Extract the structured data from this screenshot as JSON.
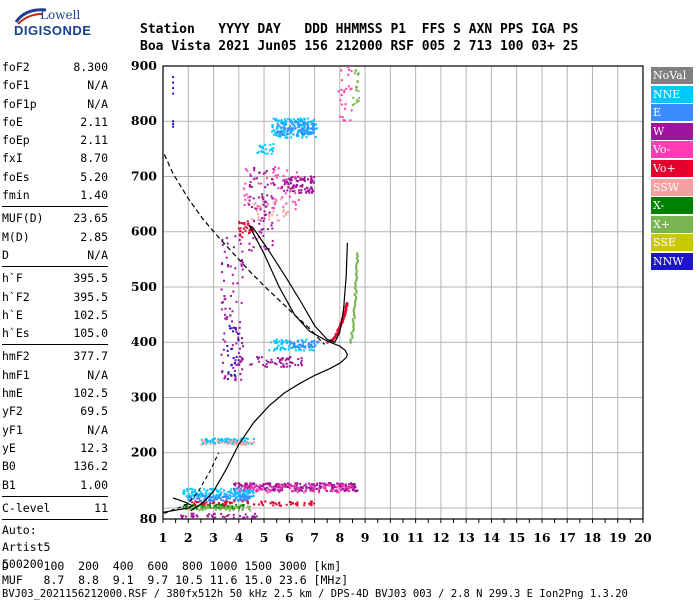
{
  "logo": {
    "line1": "Lowell",
    "line2": "DIGISONDE"
  },
  "header": {
    "line1": "Station   YYYY DAY   DDD HHMMSS P1  FFS S AXN PPS IGA PS",
    "line2": "Boa Vista 2021 Jun05 156 212000 RSF 005 2 713 100 03+ 25"
  },
  "params": {
    "group1": [
      {
        "label": "foF2",
        "value": "8.300"
      },
      {
        "label": "foF1",
        "value": "N/A"
      },
      {
        "label": "foF1p",
        "value": "N/A"
      },
      {
        "label": "foE",
        "value": "2.11"
      },
      {
        "label": "foEp",
        "value": "2.11"
      },
      {
        "label": "fxI",
        "value": "8.70"
      },
      {
        "label": "foEs",
        "value": "5.20"
      },
      {
        "label": "fmin",
        "value": "1.40"
      }
    ],
    "group2": [
      {
        "label": "MUF(D)",
        "value": "23.65"
      },
      {
        "label": "M(D)",
        "value": "2.85"
      },
      {
        "label": "D",
        "value": "N/A"
      }
    ],
    "group3": [
      {
        "label": "h`F",
        "value": "395.5"
      },
      {
        "label": "h`F2",
        "value": "395.5"
      },
      {
        "label": "h`E",
        "value": "102.5"
      },
      {
        "label": "h`Es",
        "value": "105.0"
      }
    ],
    "group4": [
      {
        "label": "hmF2",
        "value": "377.7"
      },
      {
        "label": "hmF1",
        "value": "N/A"
      },
      {
        "label": "hmE",
        "value": "102.5"
      },
      {
        "label": "yF2",
        "value": "69.5"
      },
      {
        "label": "yF1",
        "value": "N/A"
      },
      {
        "label": "yE",
        "value": "12.3"
      },
      {
        "label": "B0",
        "value": "136.2"
      },
      {
        "label": "B1",
        "value": "1.00"
      }
    ],
    "group5": [
      {
        "label": "C-level",
        "value": "11"
      }
    ],
    "auto": [
      "Auto:",
      "Artist5",
      "500200"
    ]
  },
  "legend": [
    {
      "label": "NoVal",
      "color": "#808080"
    },
    {
      "label": "NNE",
      "color": "#00c8ff"
    },
    {
      "label": "E",
      "color": "#3c8cff"
    },
    {
      "label": "W",
      "color": "#a0149b"
    },
    {
      "label": "Vo-",
      "color": "#ff3cb4"
    },
    {
      "label": "Vo+",
      "color": "#e6002d"
    },
    {
      "label": "SSW",
      "color": "#f5a0a0"
    },
    {
      "label": "X-",
      "color": "#008200"
    },
    {
      "label": "X+",
      "color": "#78b450"
    },
    {
      "label": "SSE",
      "color": "#c8c800"
    },
    {
      "label": "NNW",
      "color": "#1e14c8"
    }
  ],
  "footer": {
    "line1": "D     100  200  400  600  800 1000 1500 3000 [km]",
    "line2": "MUF   8.7  8.8  9.1  9.7 10.5 11.6 15.0 23.6 [MHz]",
    "line3": "BVJ03_2021156212000.RSF / 380fx512h 50 kHz 2.5 km / DPS-4D BVJ03 003 / 2.8 N 299.3 E Ion2Png 1.3.20"
  },
  "chart_data": {
    "type": "scatter",
    "title": "",
    "xlabel": "",
    "ylabel": "",
    "xlim": [
      1,
      20
    ],
    "ylim": [
      80,
      900
    ],
    "xticks": [
      1,
      2,
      3,
      4,
      5,
      6,
      7,
      8,
      9,
      10,
      11,
      12,
      13,
      14,
      15,
      16,
      17,
      18,
      19,
      20
    ],
    "yticks": [
      80,
      100,
      200,
      300,
      400,
      500,
      600,
      700,
      800,
      900
    ],
    "yticklabels": [
      "80",
      "",
      "200",
      "300",
      "400",
      "500",
      "600",
      "700",
      "800",
      "900"
    ],
    "grid": true,
    "profile_solid": [
      [
        2.1,
        95
      ],
      [
        2.6,
        110
      ],
      [
        3.0,
        130
      ],
      [
        3.5,
        170
      ],
      [
        4.0,
        215
      ],
      [
        4.6,
        255
      ],
      [
        5.2,
        285
      ],
      [
        5.8,
        308
      ],
      [
        6.4,
        325
      ],
      [
        7.0,
        340
      ],
      [
        7.6,
        352
      ],
      [
        8.0,
        362
      ],
      [
        8.25,
        372
      ],
      [
        8.3,
        378
      ],
      [
        8.2,
        386
      ],
      [
        8.0,
        393
      ],
      [
        7.5,
        402
      ],
      [
        6.8,
        420
      ],
      [
        6.2,
        450
      ],
      [
        5.6,
        500
      ],
      [
        5.0,
        560
      ],
      [
        4.6,
        595
      ],
      [
        4.4,
        612
      ],
      [
        4.6,
        605
      ],
      [
        5.2,
        565
      ],
      [
        5.9,
        515
      ],
      [
        6.5,
        470
      ],
      [
        7.0,
        430
      ],
      [
        7.5,
        405
      ],
      [
        7.8,
        400
      ],
      [
        8.0,
        418
      ],
      [
        8.15,
        460
      ],
      [
        8.25,
        520
      ],
      [
        8.3,
        580
      ]
    ],
    "profile_dashed": [
      [
        1.05,
        740
      ],
      [
        1.4,
        705
      ],
      [
        2.0,
        660
      ],
      [
        2.6,
        622
      ],
      [
        3.2,
        590
      ],
      [
        3.8,
        560
      ],
      [
        4.4,
        530
      ],
      [
        5.0,
        502
      ],
      [
        5.6,
        476
      ],
      [
        6.2,
        450
      ],
      [
        6.8,
        425
      ],
      [
        7.2,
        405
      ],
      [
        7.4,
        396
      ]
    ],
    "profile_low_dashed": [
      [
        1.05,
        90
      ],
      [
        1.3,
        95
      ],
      [
        1.6,
        100
      ],
      [
        2.0,
        108
      ],
      [
        2.4,
        130
      ],
      [
        2.9,
        170
      ],
      [
        3.2,
        200
      ]
    ],
    "profile_low_solid": [
      [
        1.0,
        92
      ],
      [
        1.5,
        96
      ],
      [
        2.0,
        100
      ],
      [
        2.15,
        104
      ],
      [
        1.9,
        110
      ],
      [
        1.6,
        115
      ],
      [
        1.4,
        118
      ]
    ],
    "traces": [
      {
        "mode": "NNW",
        "points": [
          [
            1.4,
            880
          ],
          [
            1.4,
            870
          ],
          [
            1.4,
            860
          ],
          [
            1.4,
            850
          ],
          [
            1.4,
            800
          ],
          [
            1.4,
            795
          ],
          [
            1.4,
            790
          ]
        ],
        "kind": "dots"
      },
      {
        "mode": "NNE",
        "x": [
          5.3,
          7.1
        ],
        "y": [
          770,
          805
        ],
        "kind": "cloud",
        "n": 160
      },
      {
        "mode": "E",
        "x": [
          5.5,
          7.0
        ],
        "y": [
          775,
          800
        ],
        "kind": "cloud",
        "n": 80
      },
      {
        "mode": "W",
        "x": [
          5.7,
          7.0
        ],
        "y": [
          670,
          700
        ],
        "kind": "cloud",
        "n": 90
      },
      {
        "mode": "Vo-",
        "x": [
          4.2,
          6.5
        ],
        "y": [
          640,
          720
        ],
        "kind": "cloud",
        "n": 60
      },
      {
        "mode": "SSW",
        "x": [
          4.5,
          6.0
        ],
        "y": [
          620,
          660
        ],
        "kind": "cloud",
        "n": 40
      },
      {
        "mode": "W",
        "x": [
          4.4,
          5.4
        ],
        "y": [
          560,
          720
        ],
        "kind": "cloud",
        "n": 70
      },
      {
        "mode": "Vo+",
        "x": [
          4.0,
          4.6
        ],
        "y": [
          590,
          620
        ],
        "kind": "cloud",
        "n": 30
      },
      {
        "mode": "NNE",
        "x": [
          4.6,
          5.4
        ],
        "y": [
          740,
          760
        ],
        "kind": "cloud",
        "n": 25
      },
      {
        "mode": "W",
        "x": [
          3.3,
          4.2
        ],
        "y": [
          330,
          600
        ],
        "kind": "cloud",
        "n": 90
      },
      {
        "mode": "NNW",
        "x": [
          3.5,
          4.0
        ],
        "y": [
          330,
          430
        ],
        "kind": "cloud",
        "n": 25
      },
      {
        "mode": "W",
        "x": [
          3.8,
          6.5
        ],
        "y": [
          355,
          375
        ],
        "kind": "cloud",
        "n": 60
      },
      {
        "mode": "NNE",
        "x": [
          5.2,
          7.0
        ],
        "y": [
          385,
          405
        ],
        "kind": "cloud",
        "n": 70
      },
      {
        "mode": "E",
        "x": [
          6.0,
          7.2
        ],
        "y": [
          390,
          402
        ],
        "kind": "cloud",
        "n": 40
      },
      {
        "mode": "Vo+",
        "x": [
          7.5,
          8.3
        ],
        "y": [
          400,
          470
        ],
        "kind": "curve",
        "n": 45
      },
      {
        "mode": "X+",
        "x": [
          8.4,
          8.7
        ],
        "y": [
          400,
          560
        ],
        "kind": "curve",
        "n": 40
      },
      {
        "mode": "Vo-",
        "x": [
          7.9,
          8.5
        ],
        "y": [
          800,
          900
        ],
        "kind": "cloud",
        "n": 25
      },
      {
        "mode": "X+",
        "x": [
          8.5,
          8.8
        ],
        "y": [
          820,
          900
        ],
        "kind": "cloud",
        "n": 20
      },
      {
        "mode": "NNE",
        "x": [
          2.5,
          4.6
        ],
        "y": [
          216,
          226
        ],
        "kind": "cloud",
        "n": 90
      },
      {
        "mode": "SSW",
        "x": [
          2.5,
          4.6
        ],
        "y": [
          214,
          222
        ],
        "kind": "cloud",
        "n": 40
      },
      {
        "mode": "W",
        "x": [
          3.8,
          8.7
        ],
        "y": [
          130,
          145
        ],
        "kind": "cloud",
        "n": 260
      },
      {
        "mode": "Vo-",
        "x": [
          4.0,
          8.5
        ],
        "y": [
          128,
          142
        ],
        "kind": "cloud",
        "n": 80
      },
      {
        "mode": "NNE",
        "x": [
          1.8,
          4.6
        ],
        "y": [
          118,
          135
        ],
        "kind": "cloud",
        "n": 160
      },
      {
        "mode": "E",
        "x": [
          2.0,
          4.5
        ],
        "y": [
          112,
          125
        ],
        "kind": "cloud",
        "n": 90
      },
      {
        "mode": "Vo+",
        "x": [
          2.0,
          7.0
        ],
        "y": [
          104,
          112
        ],
        "kind": "cloud",
        "n": 80
      },
      {
        "mode": "X-",
        "x": [
          1.8,
          4.2
        ],
        "y": [
          98,
          106
        ],
        "kind": "cloud",
        "n": 60
      },
      {
        "mode": "X+",
        "x": [
          2.0,
          4.5
        ],
        "y": [
          95,
          104
        ],
        "kind": "cloud",
        "n": 50
      },
      {
        "mode": "W",
        "x": [
          1.6,
          4.8
        ],
        "y": [
          82,
          90
        ],
        "kind": "cloud",
        "n": 40
      }
    ]
  }
}
